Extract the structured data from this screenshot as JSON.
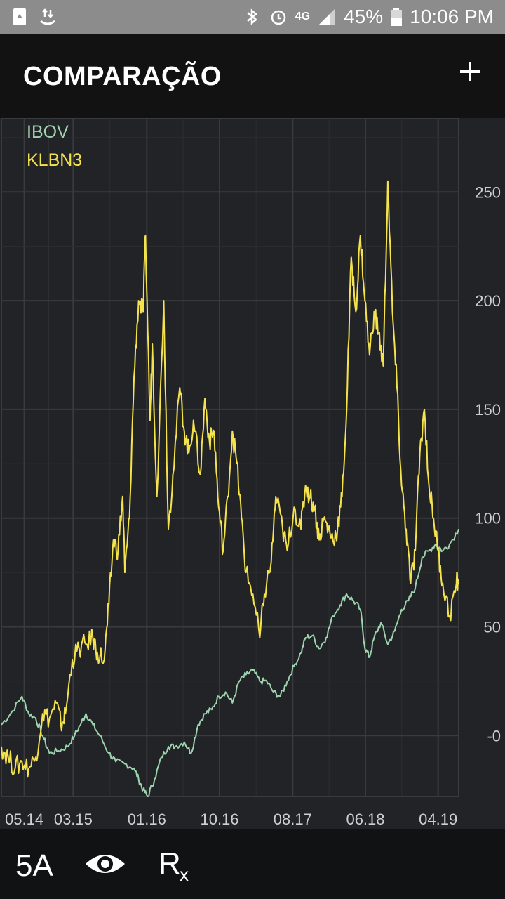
{
  "status_bar": {
    "network": "4G",
    "battery": "45%",
    "time": "10:06 PM"
  },
  "header": {
    "title": "COMPARAÇÃO",
    "add_icon": "plus-icon"
  },
  "bottom_bar": {
    "period_label": "5A",
    "view_icon": "eye-icon",
    "rx_icon": "rx-icon"
  },
  "colors": {
    "ibov": "#9fd4b0",
    "klbn3": "#f5e34d",
    "grid": "#3a3b3e",
    "axis_text": "#cfcfcf"
  },
  "chart_data": {
    "type": "line",
    "title": "",
    "xlabel": "",
    "ylabel": "",
    "legend_position": "top-left",
    "grid": true,
    "ylim": [
      -28,
      284
    ],
    "y_ticks": [
      0,
      50,
      100,
      150,
      200,
      250
    ],
    "y_tick_labels": [
      "-0",
      "50",
      "100",
      "150",
      "200",
      "250"
    ],
    "x_tick_labels": [
      "05.14",
      "03.15",
      "01.16",
      "10.16",
      "08.17",
      "06.18",
      "04.19"
    ],
    "x_tick_pos": [
      0.05,
      0.157,
      0.318,
      0.477,
      0.637,
      0.796,
      0.955
    ],
    "series": [
      {
        "name": "IBOV",
        "color": "#9fd4b0",
        "points": [
          [
            0.0,
            5
          ],
          [
            0.02,
            10
          ],
          [
            0.045,
            18
          ],
          [
            0.06,
            10
          ],
          [
            0.075,
            8
          ],
          [
            0.09,
            0
          ],
          [
            0.105,
            -8
          ],
          [
            0.125,
            -7
          ],
          [
            0.145,
            -5
          ],
          [
            0.16,
            0
          ],
          [
            0.175,
            6
          ],
          [
            0.185,
            10
          ],
          [
            0.2,
            5
          ],
          [
            0.215,
            0
          ],
          [
            0.235,
            -8
          ],
          [
            0.25,
            -12
          ],
          [
            0.27,
            -13
          ],
          [
            0.29,
            -15
          ],
          [
            0.3,
            -20
          ],
          [
            0.31,
            -25
          ],
          [
            0.32,
            -28
          ],
          [
            0.335,
            -20
          ],
          [
            0.35,
            -10
          ],
          [
            0.365,
            -5
          ],
          [
            0.38,
            -5
          ],
          [
            0.4,
            -3
          ],
          [
            0.415,
            -8
          ],
          [
            0.43,
            5
          ],
          [
            0.445,
            10
          ],
          [
            0.46,
            12
          ],
          [
            0.475,
            18
          ],
          [
            0.49,
            20
          ],
          [
            0.505,
            15
          ],
          [
            0.52,
            25
          ],
          [
            0.535,
            28
          ],
          [
            0.55,
            30
          ],
          [
            0.565,
            25
          ],
          [
            0.58,
            25
          ],
          [
            0.595,
            20
          ],
          [
            0.61,
            18
          ],
          [
            0.625,
            25
          ],
          [
            0.64,
            32
          ],
          [
            0.655,
            38
          ],
          [
            0.665,
            45
          ],
          [
            0.68,
            46
          ],
          [
            0.695,
            40
          ],
          [
            0.71,
            45
          ],
          [
            0.725,
            55
          ],
          [
            0.74,
            60
          ],
          [
            0.755,
            65
          ],
          [
            0.77,
            62
          ],
          [
            0.785,
            58
          ],
          [
            0.795,
            40
          ],
          [
            0.805,
            36
          ],
          [
            0.815,
            45
          ],
          [
            0.83,
            52
          ],
          [
            0.845,
            42
          ],
          [
            0.86,
            48
          ],
          [
            0.875,
            58
          ],
          [
            0.89,
            62
          ],
          [
            0.905,
            68
          ],
          [
            0.92,
            82
          ],
          [
            0.935,
            85
          ],
          [
            0.95,
            88
          ],
          [
            0.965,
            85
          ],
          [
            0.98,
            88
          ],
          [
            1.0,
            95
          ]
        ]
      },
      {
        "name": "KLBN3",
        "color": "#f5e34d",
        "points": [
          [
            0.0,
            -5
          ],
          [
            0.015,
            -10
          ],
          [
            0.03,
            -15
          ],
          [
            0.045,
            -12
          ],
          [
            0.06,
            -15
          ],
          [
            0.075,
            -10
          ],
          [
            0.09,
            10
          ],
          [
            0.105,
            8
          ],
          [
            0.12,
            15
          ],
          [
            0.13,
            5
          ],
          [
            0.14,
            10
          ],
          [
            0.155,
            35
          ],
          [
            0.17,
            40
          ],
          [
            0.185,
            42
          ],
          [
            0.2,
            45
          ],
          [
            0.21,
            38
          ],
          [
            0.225,
            35
          ],
          [
            0.235,
            60
          ],
          [
            0.245,
            90
          ],
          [
            0.255,
            85
          ],
          [
            0.265,
            110
          ],
          [
            0.27,
            75
          ],
          [
            0.28,
            100
          ],
          [
            0.29,
            165
          ],
          [
            0.3,
            200
          ],
          [
            0.31,
            195
          ],
          [
            0.315,
            230
          ],
          [
            0.325,
            145
          ],
          [
            0.33,
            180
          ],
          [
            0.34,
            110
          ],
          [
            0.355,
            200
          ],
          [
            0.365,
            95
          ],
          [
            0.375,
            120
          ],
          [
            0.39,
            160
          ],
          [
            0.4,
            140
          ],
          [
            0.41,
            130
          ],
          [
            0.42,
            145
          ],
          [
            0.435,
            120
          ],
          [
            0.445,
            155
          ],
          [
            0.455,
            135
          ],
          [
            0.465,
            140
          ],
          [
            0.475,
            105
          ],
          [
            0.485,
            85
          ],
          [
            0.495,
            110
          ],
          [
            0.505,
            140
          ],
          [
            0.515,
            125
          ],
          [
            0.525,
            100
          ],
          [
            0.535,
            75
          ],
          [
            0.55,
            65
          ],
          [
            0.565,
            45
          ],
          [
            0.575,
            65
          ],
          [
            0.59,
            80
          ],
          [
            0.6,
            110
          ],
          [
            0.615,
            95
          ],
          [
            0.625,
            85
          ],
          [
            0.64,
            105
          ],
          [
            0.655,
            95
          ],
          [
            0.665,
            115
          ],
          [
            0.675,
            110
          ],
          [
            0.685,
            105
          ],
          [
            0.695,
            90
          ],
          [
            0.705,
            100
          ],
          [
            0.715,
            95
          ],
          [
            0.725,
            90
          ],
          [
            0.735,
            95
          ],
          [
            0.745,
            110
          ],
          [
            0.755,
            150
          ],
          [
            0.765,
            220
          ],
          [
            0.775,
            195
          ],
          [
            0.785,
            230
          ],
          [
            0.795,
            200
          ],
          [
            0.805,
            175
          ],
          [
            0.815,
            195
          ],
          [
            0.825,
            185
          ],
          [
            0.835,
            170
          ],
          [
            0.845,
            255
          ],
          [
            0.855,
            195
          ],
          [
            0.865,
            160
          ],
          [
            0.875,
            115
          ],
          [
            0.885,
            95
          ],
          [
            0.895,
            70
          ],
          [
            0.905,
            85
          ],
          [
            0.915,
            130
          ],
          [
            0.925,
            150
          ],
          [
            0.935,
            115
          ],
          [
            0.945,
            100
          ],
          [
            0.955,
            85
          ],
          [
            0.965,
            70
          ],
          [
            0.98,
            55
          ],
          [
            0.995,
            70
          ],
          [
            1.0,
            72
          ]
        ]
      }
    ]
  }
}
